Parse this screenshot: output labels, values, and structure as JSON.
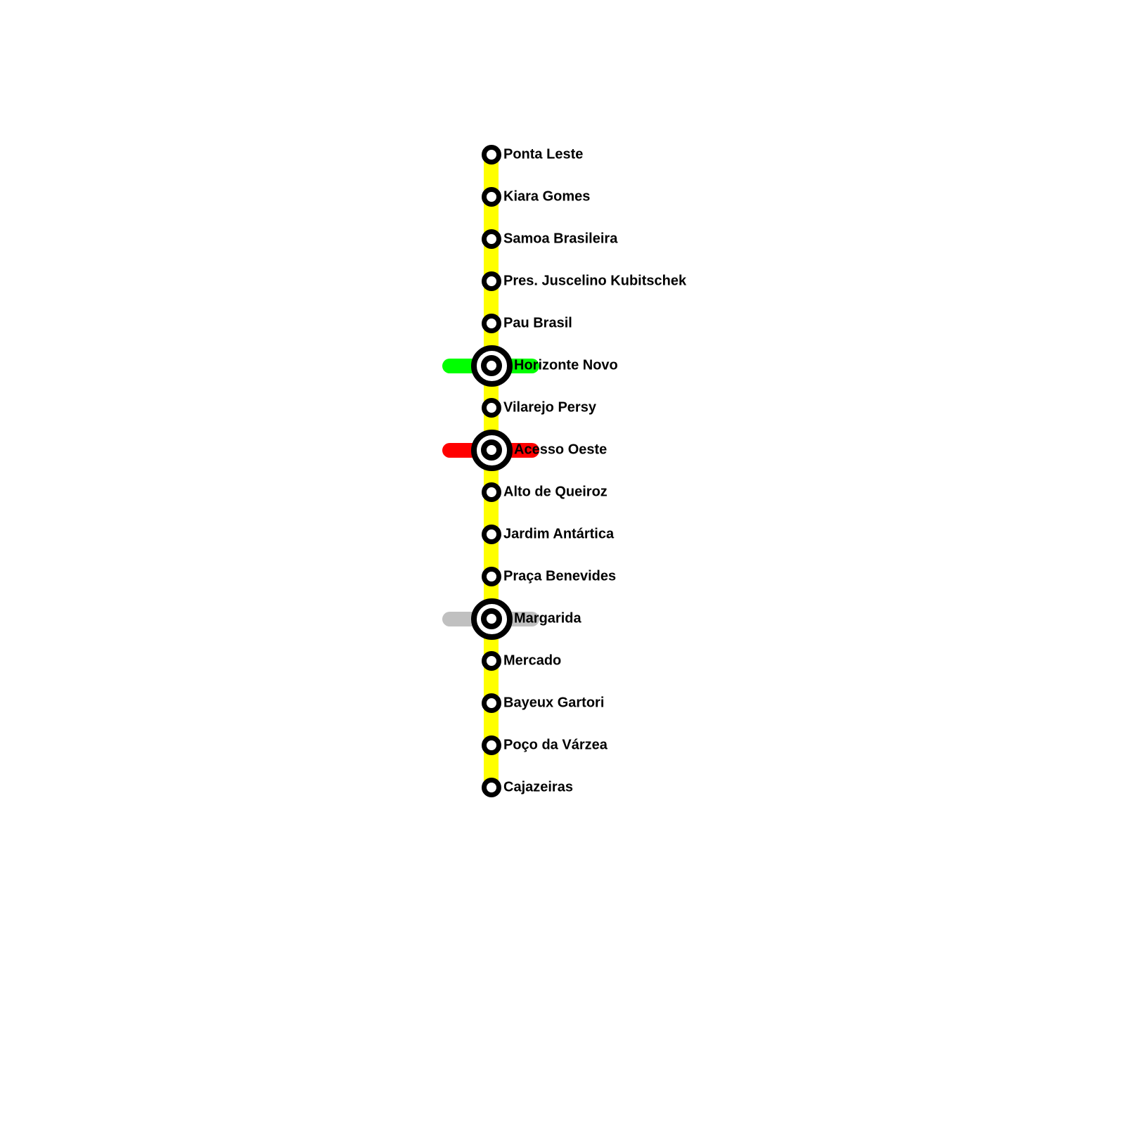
{
  "map": {
    "background_color": "#ffffff",
    "line": {
      "id": "yellow-line",
      "color": "#ffff00",
      "orientation": "vertical"
    },
    "connection_colors": {
      "green": "#00ff00",
      "red": "#ff0000",
      "gray": "#c0c0c0"
    },
    "stations": [
      {
        "name": "Ponta Leste",
        "type": "regular"
      },
      {
        "name": "Kiara Gomes",
        "type": "regular"
      },
      {
        "name": "Samoa Brasileira",
        "type": "regular"
      },
      {
        "name": "Pres. Juscelino Kubitschek",
        "type": "regular"
      },
      {
        "name": "Pau Brasil",
        "type": "regular"
      },
      {
        "name": "Horizonte Novo",
        "type": "interchange",
        "connection_color": "#00ff00"
      },
      {
        "name": "Vilarejo Persy",
        "type": "regular"
      },
      {
        "name": "Acesso Oeste",
        "type": "interchange",
        "connection_color": "#ff0000"
      },
      {
        "name": "Alto de Queiroz",
        "type": "regular"
      },
      {
        "name": "Jardim Antártica",
        "type": "regular"
      },
      {
        "name": "Praça Benevides",
        "type": "regular"
      },
      {
        "name": "Margarida",
        "type": "interchange",
        "connection_color": "#c0c0c0"
      },
      {
        "name": "Mercado",
        "type": "regular"
      },
      {
        "name": "Bayeux Gartori",
        "type": "regular"
      },
      {
        "name": "Poço da Várzea",
        "type": "regular"
      },
      {
        "name": "Cajazeiras",
        "type": "regular"
      }
    ]
  }
}
